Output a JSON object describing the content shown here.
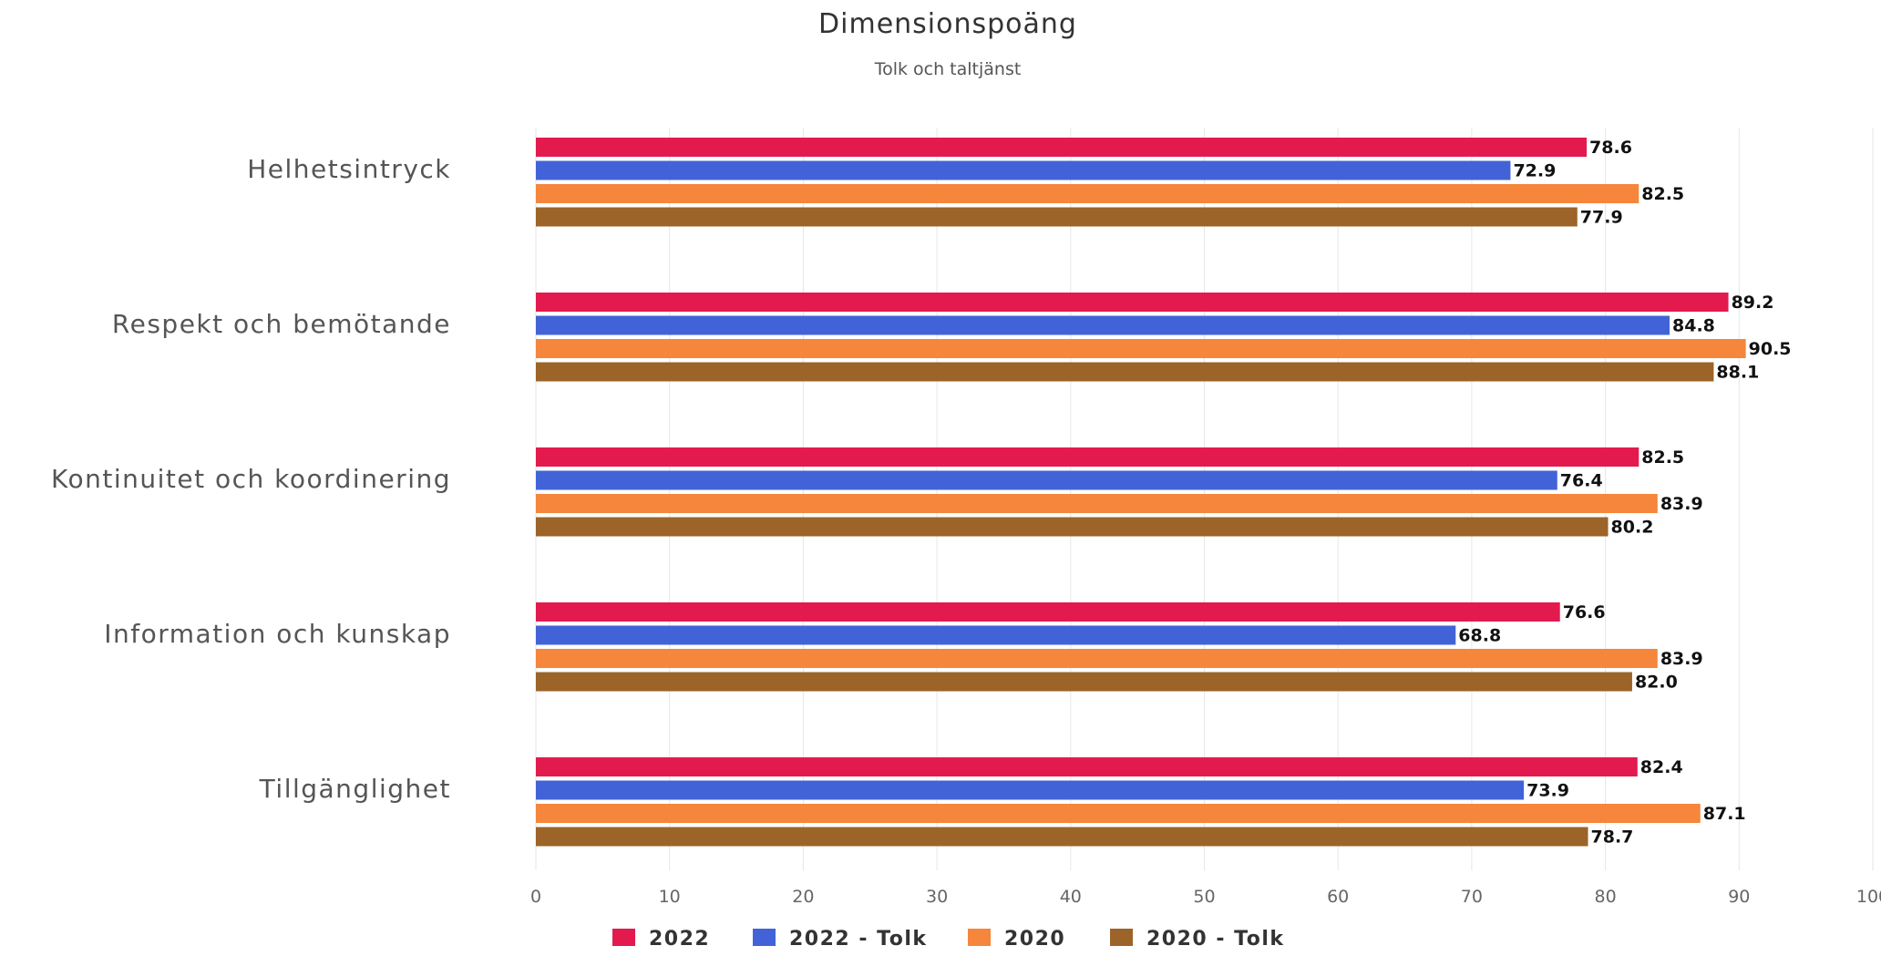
{
  "chart_data": {
    "type": "bar",
    "orientation": "horizontal",
    "title": "Dimensionspoäng",
    "subtitle": "Tolk och taltjänst",
    "categories": [
      "Helhetsintryck",
      "Respekt och bemötande",
      "Kontinuitet och koordinering",
      "Information och kunskap",
      "Tillgänglighet"
    ],
    "series": [
      {
        "name": "2022",
        "color": "#e31a4e",
        "values": [
          78.6,
          89.2,
          82.5,
          76.6,
          82.4
        ]
      },
      {
        "name": "2022 - Tolk",
        "color": "#4263d7",
        "values": [
          72.9,
          84.8,
          76.4,
          68.8,
          73.9
        ]
      },
      {
        "name": "2020",
        "color": "#f5863b",
        "values": [
          82.5,
          90.5,
          83.9,
          83.9,
          87.1
        ]
      },
      {
        "name": "2020 - Tolk",
        "color": "#9c6428",
        "values": [
          77.9,
          88.1,
          80.2,
          82.0,
          78.7
        ]
      }
    ],
    "data_labels": [
      [
        "78.6",
        "89.2",
        "82.5",
        "76.6",
        "82.4"
      ],
      [
        "72.9",
        "84.8",
        "76.4",
        "68.8",
        "73.9"
      ],
      [
        "82.5",
        "90.5",
        "83.9",
        "83.9",
        "87.1"
      ],
      [
        "77.9",
        "88.1",
        "80.2",
        "82.0",
        "78.7"
      ]
    ],
    "xlim": [
      0,
      100
    ],
    "xticks": [
      0,
      10,
      20,
      30,
      40,
      50,
      60,
      70,
      80,
      90,
      100
    ],
    "grid": true,
    "legend_position": "bottom"
  }
}
